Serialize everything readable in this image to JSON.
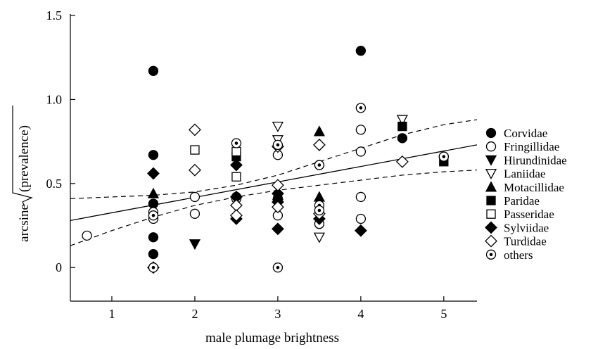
{
  "chart_data": {
    "type": "scatter",
    "xlabel": "male plumage brightness",
    "ylabel_prefix": "arcsine ",
    "ylabel_radicand": "(prevalence)",
    "xlim": [
      0.5,
      5.4
    ],
    "ylim": [
      -0.2,
      1.5
    ],
    "x_ticks": [
      1,
      2,
      3,
      4,
      5
    ],
    "y_ticks": [
      0,
      0.5,
      1.0,
      1.5
    ],
    "y_tick_labels": [
      "0",
      "0.5",
      "1.0",
      "1.5"
    ],
    "legend": {
      "placement": "right"
    },
    "series": [
      {
        "name": "Corvidae",
        "marker": "filled-circle",
        "points": [
          [
            1.5,
            1.17
          ],
          [
            1.5,
            0.67
          ],
          [
            1.5,
            0.38
          ],
          [
            1.5,
            0.18
          ],
          [
            1.5,
            0.08
          ],
          [
            2.5,
            0.42
          ],
          [
            3.5,
            0.26
          ],
          [
            4,
            1.29
          ],
          [
            4.5,
            0.77
          ],
          [
            5,
            0.66
          ]
        ]
      },
      {
        "name": "Fringillidae",
        "marker": "open-circle",
        "points": [
          [
            0.7,
            0.19
          ],
          [
            1.5,
            0.33
          ],
          [
            1.5,
            0.29
          ],
          [
            2,
            0.42
          ],
          [
            2,
            0.32
          ],
          [
            2.5,
            0.41
          ],
          [
            3,
            0.67
          ],
          [
            3,
            0.31
          ],
          [
            3,
            0.41
          ],
          [
            3.5,
            0.61
          ],
          [
            3.5,
            0.26
          ],
          [
            4,
            0.82
          ],
          [
            4,
            0.69
          ],
          [
            4,
            0.42
          ],
          [
            4,
            0.29
          ]
        ]
      },
      {
        "name": "Hirundinidae",
        "marker": "filled-triangle-down",
        "points": [
          [
            2,
            0.14
          ]
        ]
      },
      {
        "name": "Laniidae",
        "marker": "open-triangle-down",
        "points": [
          [
            3,
            0.84
          ],
          [
            3,
            0.76
          ],
          [
            3.5,
            0.18
          ],
          [
            4.5,
            0.88
          ]
        ]
      },
      {
        "name": "Motacillidae",
        "marker": "filled-triangle-up",
        "points": [
          [
            1.5,
            0.44
          ],
          [
            3,
            0.43
          ],
          [
            3.5,
            0.81
          ],
          [
            3.5,
            0.42
          ]
        ]
      },
      {
        "name": "Paridae",
        "marker": "filled-square",
        "points": [
          [
            2.5,
            0.66
          ],
          [
            4.5,
            0.84
          ],
          [
            5,
            0.63
          ]
        ]
      },
      {
        "name": "Passeridae",
        "marker": "open-square",
        "points": [
          [
            2,
            0.7
          ],
          [
            2.5,
            0.69
          ],
          [
            2.5,
            0.54
          ]
        ]
      },
      {
        "name": "Sylviidae",
        "marker": "filled-diamond",
        "points": [
          [
            1.5,
            0.56
          ],
          [
            2.5,
            0.61
          ],
          [
            2.5,
            0.42
          ],
          [
            2.5,
            0.29
          ],
          [
            3,
            0.44
          ],
          [
            3,
            0.39
          ],
          [
            3,
            0.23
          ],
          [
            3.5,
            0.29
          ],
          [
            4,
            0.22
          ]
        ]
      },
      {
        "name": "Turdidae",
        "marker": "open-diamond",
        "points": [
          [
            1.5,
            0.0
          ],
          [
            2,
            0.82
          ],
          [
            2,
            0.58
          ],
          [
            2.5,
            0.37
          ],
          [
            2.5,
            0.31
          ],
          [
            3,
            0.72
          ],
          [
            3,
            0.49
          ],
          [
            3,
            0.36
          ],
          [
            3.5,
            0.73
          ],
          [
            3.5,
            0.32
          ],
          [
            4.5,
            0.63
          ]
        ]
      },
      {
        "name": "others",
        "marker": "dotted-circle",
        "points": [
          [
            1.5,
            0.31
          ],
          [
            1.5,
            0.0
          ],
          [
            2.5,
            0.74
          ],
          [
            3,
            0.73
          ],
          [
            3,
            0.0
          ],
          [
            3.5,
            0.61
          ],
          [
            3.5,
            0.37
          ],
          [
            3.5,
            0.34
          ],
          [
            4,
            0.95
          ],
          [
            5,
            0.66
          ]
        ]
      }
    ],
    "fit_line": {
      "style": "solid",
      "points": [
        [
          0.5,
          0.28
        ],
        [
          5.4,
          0.73
        ]
      ]
    },
    "confidence_bands": [
      {
        "style": "dashed",
        "points": [
          [
            0.5,
            0.41
          ],
          [
            1.0,
            0.42
          ],
          [
            1.5,
            0.43
          ],
          [
            2.0,
            0.45
          ],
          [
            2.5,
            0.49
          ],
          [
            3.0,
            0.55
          ],
          [
            3.5,
            0.63
          ],
          [
            4.0,
            0.71
          ],
          [
            4.5,
            0.79
          ],
          [
            5.0,
            0.85
          ],
          [
            5.4,
            0.88
          ]
        ]
      },
      {
        "style": "dashed",
        "points": [
          [
            0.5,
            0.13
          ],
          [
            1.0,
            0.22
          ],
          [
            1.5,
            0.3
          ],
          [
            2.0,
            0.37
          ],
          [
            2.5,
            0.42
          ],
          [
            3.0,
            0.46
          ],
          [
            3.5,
            0.49
          ],
          [
            4.0,
            0.52
          ],
          [
            4.5,
            0.55
          ],
          [
            5.0,
            0.57
          ],
          [
            5.4,
            0.58
          ]
        ]
      }
    ]
  }
}
